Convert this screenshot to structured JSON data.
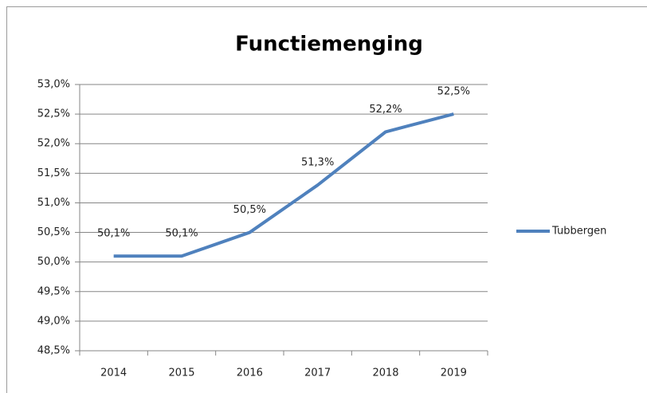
{
  "chart_data": {
    "type": "line",
    "title": "Functiemenging",
    "categories": [
      "2014",
      "2015",
      "2016",
      "2017",
      "2018",
      "2019"
    ],
    "series": [
      {
        "name": "Tubbergen",
        "color": "#4f81bd",
        "values": [
          50.1,
          50.1,
          50.5,
          51.3,
          52.2,
          52.5
        ],
        "value_labels": [
          "50,1%",
          "50,1%",
          "50,5%",
          "51,3%",
          "52,2%",
          "52,5%"
        ]
      }
    ],
    "ylim": [
      48.5,
      53.0
    ],
    "yticks": [
      {
        "value": 48.5,
        "label": "48,5%"
      },
      {
        "value": 49.0,
        "label": "49,0%"
      },
      {
        "value": 49.5,
        "label": "49,5%"
      },
      {
        "value": 50.0,
        "label": "50,0%"
      },
      {
        "value": 50.5,
        "label": "50,5%"
      },
      {
        "value": 51.0,
        "label": "51,0%"
      },
      {
        "value": 51.5,
        "label": "51,5%"
      },
      {
        "value": 52.0,
        "label": "52,0%"
      },
      {
        "value": 52.5,
        "label": "52,5%"
      },
      {
        "value": 53.0,
        "label": "53,0%"
      }
    ],
    "grid": true,
    "legend": "right"
  }
}
